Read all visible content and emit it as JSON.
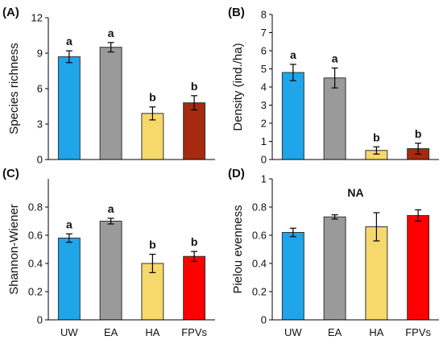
{
  "chart_data": [
    {
      "type": "bar",
      "panel_label": "(A)",
      "ylabel": "Species richness",
      "categories": [
        "UW",
        "EA",
        "HA",
        "FPVs"
      ],
      "values": [
        8.7,
        9.5,
        3.9,
        4.8
      ],
      "errors": [
        0.5,
        0.4,
        0.55,
        0.6
      ],
      "letters": [
        "a",
        "a",
        "b",
        "b"
      ],
      "ylim": [
        0,
        12
      ],
      "yticks": [
        0,
        3,
        6,
        9,
        12
      ],
      "ytick_labels": [
        "0",
        "3",
        "6",
        "9",
        "12"
      ],
      "annotation": "",
      "colors": [
        "#1fa5ea",
        "#9a9a9a",
        "#f7d86a",
        "#a52a0f"
      ]
    },
    {
      "type": "bar",
      "panel_label": "(B)",
      "ylabel": "Density (ind./ha)",
      "categories": [
        "UW",
        "EA",
        "HA",
        "FPVs"
      ],
      "values": [
        4.8,
        4.5,
        0.5,
        0.6
      ],
      "errors": [
        0.45,
        0.55,
        0.2,
        0.3
      ],
      "letters": [
        "a",
        "a",
        "b",
        "b"
      ],
      "ylim": [
        0,
        8
      ],
      "yticks": [
        0,
        1,
        2,
        3,
        4,
        5,
        6,
        7,
        8
      ],
      "ytick_labels": [
        "0",
        "1",
        "2",
        "3",
        "4",
        "5",
        "6",
        "7",
        "8"
      ],
      "annotation": "",
      "colors": [
        "#1fa5ea",
        "#9a9a9a",
        "#f7d86a",
        "#a52a0f"
      ]
    },
    {
      "type": "bar",
      "panel_label": "(C)",
      "ylabel": "Shannon-Wiener",
      "categories": [
        "UW",
        "EA",
        "HA",
        "FPVs"
      ],
      "values": [
        0.58,
        0.7,
        0.4,
        0.45
      ],
      "errors": [
        0.03,
        0.02,
        0.065,
        0.035
      ],
      "letters": [
        "a",
        "a",
        "b",
        "b"
      ],
      "ylim": [
        0,
        1
      ],
      "yticks": [
        0,
        0.2,
        0.4,
        0.6,
        0.8
      ],
      "ytick_labels": [
        "0",
        "0.2",
        "0.4",
        "0.6",
        "0.8"
      ],
      "annotation": "",
      "colors": [
        "#1fa5ea",
        "#9a9a9a",
        "#f7d86a",
        "#ff0000"
      ]
    },
    {
      "type": "bar",
      "panel_label": "(D)",
      "ylabel": "Pielou evenness",
      "categories": [
        "UW",
        "EA",
        "HA",
        "FPVs"
      ],
      "values": [
        0.62,
        0.73,
        0.66,
        0.74
      ],
      "errors": [
        0.03,
        0.015,
        0.1,
        0.04
      ],
      "letters": [
        "",
        "",
        "",
        ""
      ],
      "ylim": [
        0,
        1
      ],
      "yticks": [
        0,
        0.2,
        0.4,
        0.6,
        0.8,
        1
      ],
      "ytick_labels": [
        "0",
        "0.2",
        "0.4",
        "0.6",
        "0.8",
        "1"
      ],
      "annotation": "NA",
      "colors": [
        "#1fa5ea",
        "#9a9a9a",
        "#f7d86a",
        "#ff0000"
      ]
    }
  ]
}
